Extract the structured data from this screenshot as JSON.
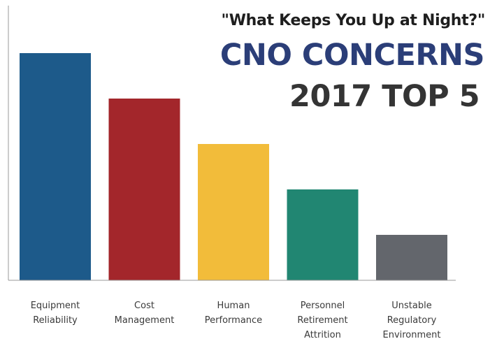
{
  "chart_data": {
    "type": "bar",
    "subtitle": "\"What Keeps You Up at Night?\"",
    "title_line1": "CNO CONCERNS",
    "title_line2": "2017 TOP 5",
    "categories": [
      [
        "Equipment",
        "Reliability"
      ],
      [
        "Cost",
        "Management"
      ],
      [
        "Human",
        "Performance"
      ],
      [
        "Personnel",
        "Retirement",
        "Attrition"
      ],
      [
        "Unstable",
        "Regulatory",
        "Environment"
      ]
    ],
    "values": [
      5,
      4,
      3,
      2,
      1
    ],
    "ylim": [
      0,
      5
    ],
    "grid": false,
    "legend": "none"
  },
  "colors": {
    "bars": [
      "#1d5a8a",
      "#a3262b",
      "#f2bc3a",
      "#218672",
      "#63666c"
    ],
    "title_line1": "#2b3e78",
    "title_line2": "#343434",
    "subtitle": "#1e1e1e",
    "axis": "#9a9a9a",
    "labels": "#3a3a3a"
  }
}
